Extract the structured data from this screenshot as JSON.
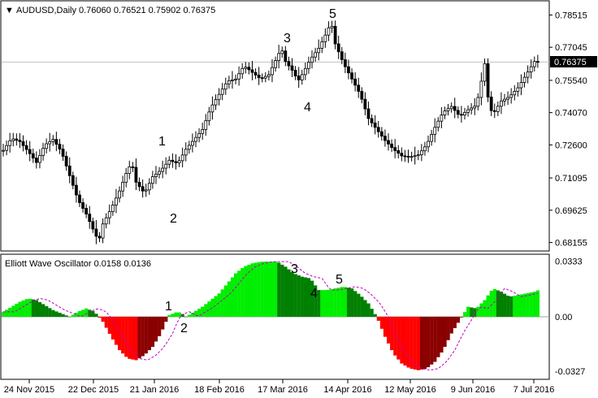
{
  "main_chart": {
    "symbol_line": "AUDUSD,Daily  0.76060 0.76521 0.75902 0.76375",
    "price_ticks": [
      "0.78515",
      "0.77045",
      "0.75540",
      "0.74070",
      "0.72600",
      "0.71095",
      "0.69625",
      "0.68155"
    ],
    "current_price": "0.76375",
    "wave_labels": [
      "1",
      "2",
      "3",
      "4",
      "5"
    ]
  },
  "indicator": {
    "title": "Elliott Wave Oscillator 0.0158 0.0136",
    "ticks": [
      "0.0333",
      "0.00",
      "-0.0327"
    ],
    "wave_labels": [
      "1",
      "2",
      "3",
      "4",
      "5"
    ]
  },
  "time_axis": {
    "labels": [
      "24 Nov 2015",
      "22 Dec 2015",
      "21 Jan 2016",
      "18 Feb 2016",
      "17 Mar 2016",
      "14 Apr 2016",
      "12 May 2016",
      "9 Jun 2016",
      "7 Jul 2016"
    ]
  },
  "colors": {
    "bull_bright": "#00ee00",
    "bull_dark": "#008000",
    "bear_bright": "#ff0000",
    "bear_dark": "#8b0000",
    "signal_line": "#c000c0",
    "price_line": "#c0c0c0"
  },
  "chart_data": {
    "type": "bar",
    "price_series": {
      "name": "AUDUSD",
      "y_range": [
        0.6788,
        0.7905
      ],
      "close_points": [
        [
          0,
          0.7235
        ],
        [
          10,
          0.729
        ],
        [
          20,
          0.7275
        ],
        [
          30,
          0.723
        ],
        [
          40,
          0.718
        ],
        [
          50,
          0.726
        ],
        [
          60,
          0.7285
        ],
        [
          70,
          0.723
        ],
        [
          80,
          0.712
        ],
        [
          90,
          0.701
        ],
        [
          100,
          0.6945
        ],
        [
          110,
          0.686
        ],
        [
          115,
          0.682
        ],
        [
          120,
          0.69
        ],
        [
          130,
          0.697
        ],
        [
          140,
          0.705
        ],
        [
          150,
          0.715
        ],
        [
          155,
          0.7175
        ],
        [
          160,
          0.709
        ],
        [
          170,
          0.704
        ],
        [
          180,
          0.7115
        ],
        [
          190,
          0.7145
        ],
        [
          200,
          0.719
        ],
        [
          210,
          0.7175
        ],
        [
          220,
          0.724
        ],
        [
          230,
          0.7285
        ],
        [
          240,
          0.733
        ],
        [
          250,
          0.743
        ],
        [
          260,
          0.749
        ],
        [
          270,
          0.755
        ],
        [
          280,
          0.756
        ],
        [
          290,
          0.762
        ],
        [
          300,
          0.759
        ],
        [
          310,
          0.756
        ],
        [
          320,
          0.758
        ],
        [
          330,
          0.766
        ],
        [
          335,
          0.77
        ],
        [
          340,
          0.764
        ],
        [
          350,
          0.759
        ],
        [
          355,
          0.755
        ],
        [
          360,
          0.758
        ],
        [
          370,
          0.765
        ],
        [
          380,
          0.77
        ],
        [
          390,
          0.7775
        ],
        [
          395,
          0.782
        ],
        [
          400,
          0.772
        ],
        [
          410,
          0.763
        ],
        [
          420,
          0.756
        ],
        [
          430,
          0.749
        ],
        [
          440,
          0.738
        ],
        [
          450,
          0.733
        ],
        [
          460,
          0.728
        ],
        [
          470,
          0.724
        ],
        [
          480,
          0.721
        ],
        [
          490,
          0.7205
        ],
        [
          500,
          0.7215
        ],
        [
          510,
          0.726
        ],
        [
          520,
          0.734
        ],
        [
          530,
          0.741
        ],
        [
          540,
          0.7435
        ],
        [
          550,
          0.739
        ],
        [
          560,
          0.742
        ],
        [
          570,
          0.744
        ],
        [
          575,
          0.753
        ],
        [
          580,
          0.763
        ],
        [
          585,
          0.744
        ],
        [
          590,
          0.74
        ],
        [
          600,
          0.746
        ],
        [
          610,
          0.748
        ],
        [
          620,
          0.752
        ],
        [
          630,
          0.758
        ],
        [
          640,
          0.764
        ],
        [
          645,
          0.7638
        ]
      ]
    },
    "oscillator_series": {
      "name": "Elliott Wave Oscillator",
      "y_range": [
        -0.036,
        0.036
      ],
      "values_points": [
        [
          0,
          0.003
        ],
        [
          10,
          0.006
        ],
        [
          20,
          0.009
        ],
        [
          30,
          0.011
        ],
        [
          40,
          0.01
        ],
        [
          50,
          0.007
        ],
        [
          60,
          0.004
        ],
        [
          70,
          0.002
        ],
        [
          80,
          0.0
        ],
        [
          90,
          0.003
        ],
        [
          100,
          0.005
        ],
        [
          110,
          0.003
        ],
        [
          115,
          0.0
        ],
        [
          120,
          -0.003
        ],
        [
          130,
          -0.012
        ],
        [
          140,
          -0.02
        ],
        [
          150,
          -0.025
        ],
        [
          160,
          -0.026
        ],
        [
          170,
          -0.023
        ],
        [
          180,
          -0.018
        ],
        [
          190,
          -0.01
        ],
        [
          195,
          -0.004
        ],
        [
          200,
          0.001
        ],
        [
          210,
          0.003
        ],
        [
          215,
          0.002
        ],
        [
          220,
          0.0
        ],
        [
          230,
          0.003
        ],
        [
          240,
          0.006
        ],
        [
          250,
          0.01
        ],
        [
          260,
          0.014
        ],
        [
          270,
          0.02
        ],
        [
          280,
          0.026
        ],
        [
          290,
          0.03
        ],
        [
          300,
          0.032
        ],
        [
          310,
          0.033
        ],
        [
          320,
          0.033
        ],
        [
          330,
          0.033
        ],
        [
          340,
          0.03
        ],
        [
          350,
          0.026
        ],
        [
          360,
          0.024
        ],
        [
          370,
          0.023
        ],
        [
          380,
          0.016
        ],
        [
          390,
          0.016
        ],
        [
          400,
          0.017
        ],
        [
          410,
          0.018
        ],
        [
          420,
          0.017
        ],
        [
          430,
          0.013
        ],
        [
          440,
          0.008
        ],
        [
          450,
          0.0
        ],
        [
          460,
          -0.012
        ],
        [
          470,
          -0.022
        ],
        [
          480,
          -0.028
        ],
        [
          490,
          -0.031
        ],
        [
          500,
          -0.032
        ],
        [
          510,
          -0.031
        ],
        [
          520,
          -0.027
        ],
        [
          530,
          -0.02
        ],
        [
          540,
          -0.01
        ],
        [
          550,
          -0.002
        ],
        [
          560,
          0.006
        ],
        [
          570,
          0.005
        ],
        [
          580,
          0.01
        ],
        [
          590,
          0.017
        ],
        [
          600,
          0.015
        ],
        [
          610,
          0.012
        ],
        [
          620,
          0.013
        ],
        [
          630,
          0.014
        ],
        [
          640,
          0.015
        ],
        [
          645,
          0.016
        ]
      ]
    },
    "x_range": [
      0,
      650
    ],
    "oscillator_sign": "hist",
    "legend": "none",
    "grid": false
  }
}
